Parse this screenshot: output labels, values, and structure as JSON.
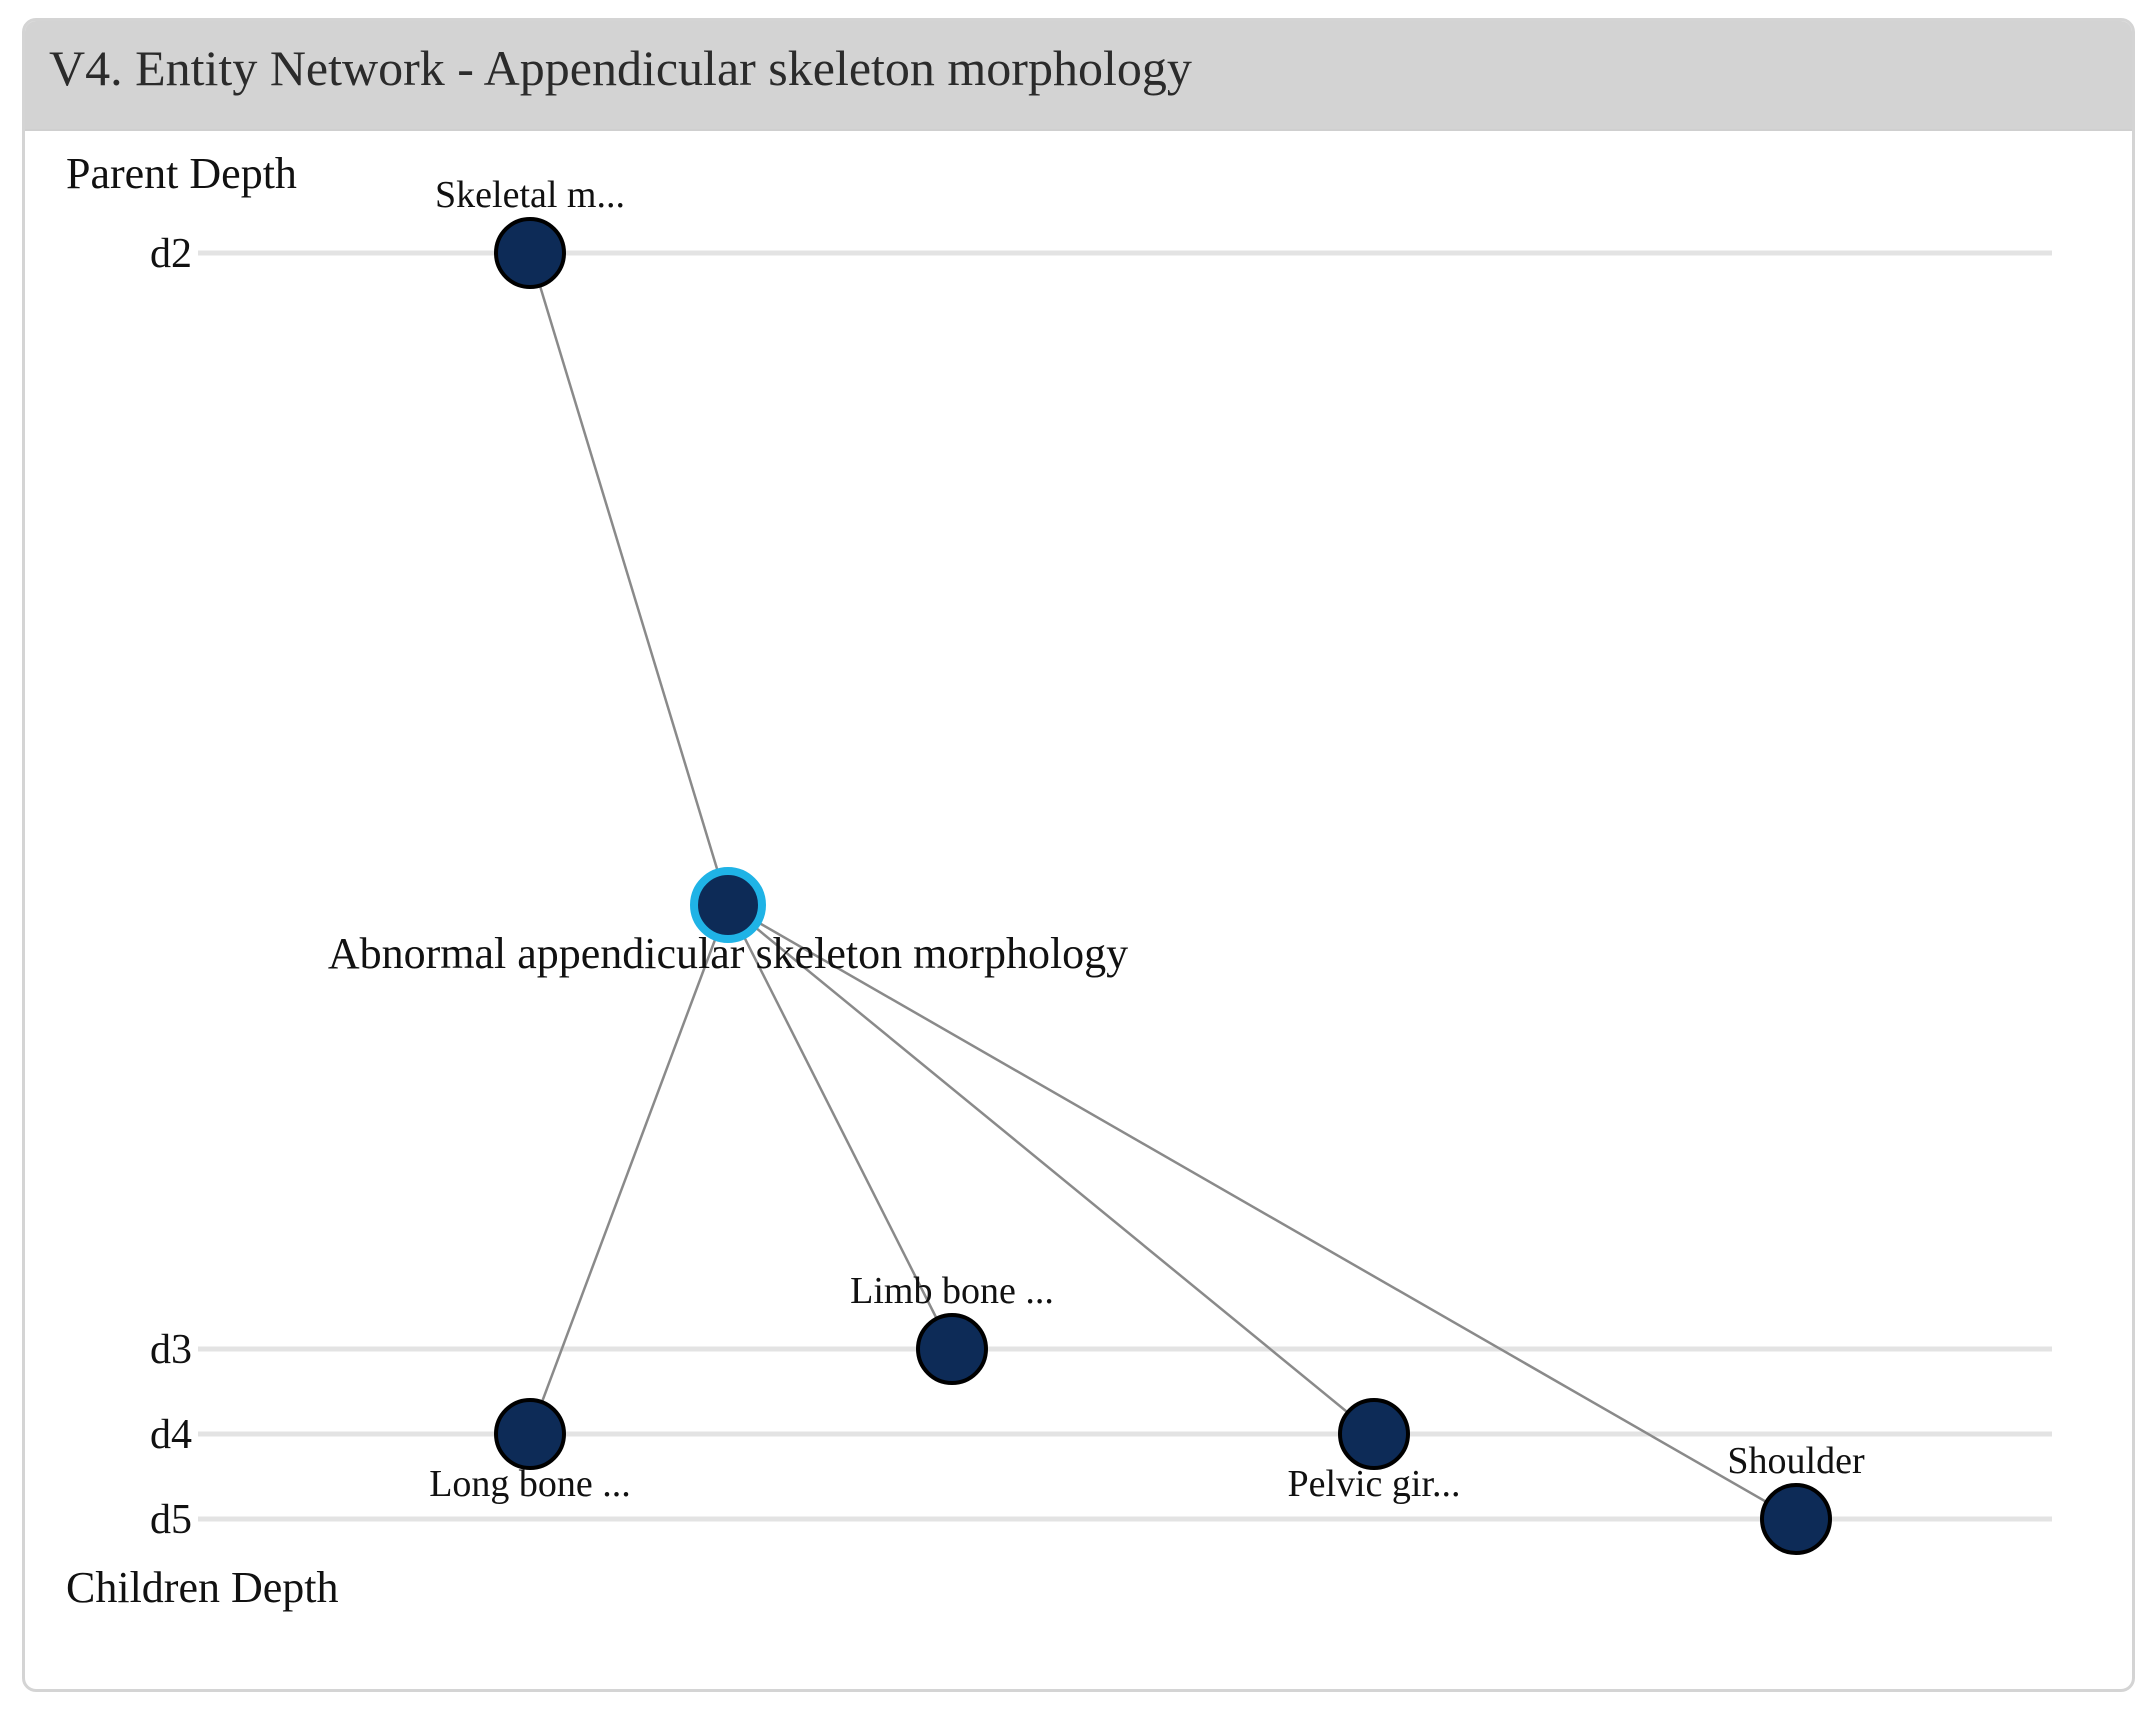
{
  "panel": {
    "title": "V4. Entity Network - Appendicular skeleton morphology"
  },
  "axis": {
    "parent_label": "Parent Depth",
    "children_label": "Children Depth",
    "levels": [
      "d2",
      "d3",
      "d4",
      "d5"
    ]
  },
  "network": {
    "focus_node": {
      "label": "Abnormal appendicular skeleton morphology",
      "fill": "#0d2b57",
      "highlight": "#1fb3e6"
    },
    "nodes": [
      {
        "id": "skeletal",
        "label": "Skeletal m...",
        "depth": "d2",
        "label_side": "above"
      },
      {
        "id": "limb",
        "label": "Limb bone ...",
        "depth": "d3",
        "label_side": "above"
      },
      {
        "id": "long",
        "label": "Long bone ...",
        "depth": "d4",
        "label_side": "below"
      },
      {
        "id": "pelvic",
        "label": "Pelvic gir...",
        "depth": "d4",
        "label_side": "below"
      },
      {
        "id": "shoulder",
        "label": "Shoulder",
        "depth": "d5",
        "label_side": "above"
      }
    ],
    "colors": {
      "node_fill": "#0d2b57",
      "node_stroke": "#000000",
      "edge": "#8a8a8a",
      "level_line": "#e3e3e3"
    }
  }
}
